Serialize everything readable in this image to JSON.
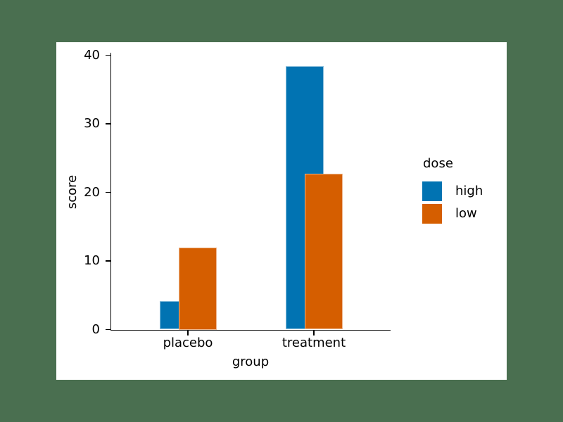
{
  "window": {
    "background_color": "#4a6f50",
    "figure_background": "#ffffff"
  },
  "chart_data": {
    "type": "bar",
    "title": "",
    "xlabel": "group",
    "ylabel": "score",
    "categories": [
      "placebo",
      "treatment"
    ],
    "series": [
      {
        "name": "high",
        "color": "#0173b2",
        "values": [
          4.2,
          38.4
        ]
      },
      {
        "name": "low",
        "color": "#d55e00",
        "values": [
          12.0,
          22.7
        ]
      }
    ],
    "legend": {
      "title": "dose",
      "position": "right-outside"
    },
    "yticks": [
      0,
      10,
      20,
      30,
      40
    ],
    "ylim": [
      0,
      40.3
    ],
    "grid": false,
    "bar_style": "overlapping-dodge",
    "axis_color": "#000000",
    "bar_edge_color": "rgba(255,255,255,0.55)"
  }
}
